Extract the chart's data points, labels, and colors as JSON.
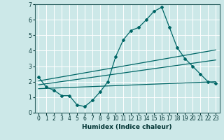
{
  "xlabel": "Humidex (Indice chaleur)",
  "background_color": "#cce8e8",
  "grid_color": "#ffffff",
  "line_color": "#006666",
  "xlim": [
    -0.5,
    23.5
  ],
  "ylim": [
    0,
    7
  ],
  "xticks": [
    0,
    1,
    2,
    3,
    4,
    5,
    6,
    7,
    8,
    9,
    10,
    11,
    12,
    13,
    14,
    15,
    16,
    17,
    18,
    19,
    20,
    21,
    22,
    23
  ],
  "yticks": [
    0,
    1,
    2,
    3,
    4,
    5,
    6,
    7
  ],
  "series1_x": [
    0,
    1,
    2,
    3,
    4,
    5,
    6,
    7,
    8,
    9,
    10,
    11,
    12,
    13,
    14,
    15,
    16,
    17,
    18,
    19,
    20,
    21,
    22,
    23
  ],
  "series1_y": [
    2.3,
    1.65,
    1.45,
    1.1,
    1.1,
    0.5,
    0.4,
    0.8,
    1.35,
    2.0,
    3.6,
    4.7,
    5.3,
    5.5,
    6.0,
    6.55,
    6.8,
    5.5,
    4.2,
    3.5,
    3.0,
    2.5,
    2.0,
    1.9
  ],
  "series2_x": [
    0,
    23
  ],
  "series2_y": [
    1.55,
    2.0
  ],
  "series3_x": [
    0,
    23
  ],
  "series3_y": [
    1.8,
    3.4
  ],
  "series4_x": [
    0,
    23
  ],
  "series4_y": [
    2.05,
    4.05
  ]
}
